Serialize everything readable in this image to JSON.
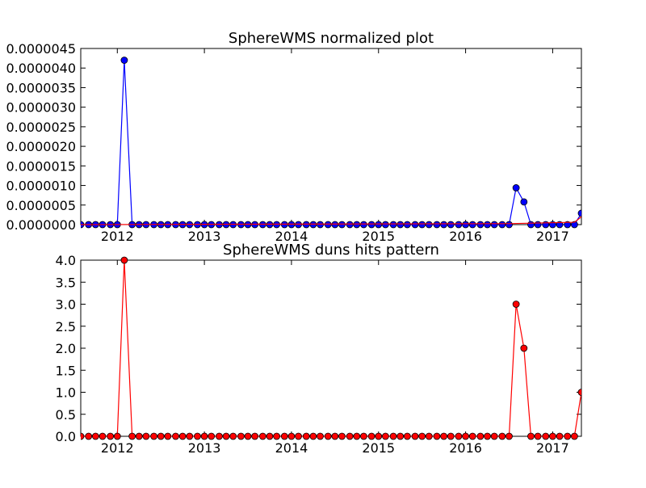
{
  "chart_data": [
    {
      "type": "line",
      "title": "SphereWMS normalized plot",
      "xlabel": "",
      "ylabel": "",
      "x_year_ticks": [
        "2012",
        "2013",
        "2014",
        "2015",
        "2016",
        "2017"
      ],
      "y_ticks": [
        "0.0000000",
        "0.0000005",
        "0.0000010",
        "0.0000015",
        "0.0000020",
        "0.0000025",
        "0.0000030",
        "0.0000035",
        "0.0000040",
        "0.0000045"
      ],
      "ylim": [
        0,
        4.5e-06
      ],
      "xlim": [
        2011.58,
        2017.33
      ],
      "grid": false,
      "series": [
        {
          "color": "#0000ff",
          "marker": "circle",
          "x": [
            2011.58,
            2011.67,
            2011.75,
            2011.83,
            2011.92,
            2012.0,
            2012.08,
            2012.17,
            2012.25,
            2012.33,
            2012.42,
            2012.5,
            2012.58,
            2012.67,
            2012.75,
            2012.83,
            2012.92,
            2013.0,
            2013.08,
            2013.17,
            2013.25,
            2013.33,
            2013.42,
            2013.5,
            2013.58,
            2013.67,
            2013.75,
            2013.83,
            2013.92,
            2014.0,
            2014.08,
            2014.17,
            2014.25,
            2014.33,
            2014.42,
            2014.5,
            2014.58,
            2014.67,
            2014.75,
            2014.83,
            2014.92,
            2015.0,
            2015.08,
            2015.17,
            2015.25,
            2015.33,
            2015.42,
            2015.5,
            2015.58,
            2015.67,
            2015.75,
            2015.83,
            2015.92,
            2016.0,
            2016.08,
            2016.17,
            2016.25,
            2016.33,
            2016.42,
            2016.5,
            2016.58,
            2016.67,
            2016.75,
            2016.83,
            2016.92,
            2017.0,
            2017.08,
            2017.17,
            2017.25,
            2017.33
          ],
          "y": [
            0,
            0,
            0,
            0,
            0,
            0,
            4.2e-06,
            0,
            0,
            0,
            0,
            0,
            0,
            0,
            0,
            0,
            0,
            0,
            0,
            0,
            0,
            0,
            0,
            0,
            0,
            0,
            0,
            0,
            0,
            0,
            0,
            0,
            0,
            0,
            0,
            0,
            0,
            0,
            0,
            0,
            0,
            0,
            0,
            0,
            0,
            0,
            0,
            0,
            0,
            0,
            0,
            0,
            0,
            0,
            0,
            0,
            0,
            0,
            0,
            0,
            9.4e-07,
            5.8e-07,
            0,
            0,
            0,
            0,
            0,
            0,
            0,
            2.9e-07
          ]
        },
        {
          "color": "#ff0000",
          "marker": "none",
          "x": [
            2011.58,
            2016.5,
            2017.25,
            2017.33
          ],
          "y": [
            5e-10,
            2.5e-08,
            6e-08,
            2e-07
          ]
        }
      ]
    },
    {
      "type": "line",
      "title": "SphereWMS duns hits pattern",
      "xlabel": "",
      "ylabel": "",
      "x_year_ticks": [
        "2012",
        "2013",
        "2014",
        "2015",
        "2016",
        "2017"
      ],
      "y_ticks": [
        "0.0",
        "0.5",
        "1.0",
        "1.5",
        "2.0",
        "2.5",
        "3.0",
        "3.5",
        "4.0"
      ],
      "ylim": [
        0,
        4
      ],
      "xlim": [
        2011.58,
        2017.33
      ],
      "grid": false,
      "series": [
        {
          "color": "#ff0000",
          "marker": "circle",
          "x": [
            2011.58,
            2011.67,
            2011.75,
            2011.83,
            2011.92,
            2012.0,
            2012.08,
            2012.17,
            2012.25,
            2012.33,
            2012.42,
            2012.5,
            2012.58,
            2012.67,
            2012.75,
            2012.83,
            2012.92,
            2013.0,
            2013.08,
            2013.17,
            2013.25,
            2013.33,
            2013.42,
            2013.5,
            2013.58,
            2013.67,
            2013.75,
            2013.83,
            2013.92,
            2014.0,
            2014.08,
            2014.17,
            2014.25,
            2014.33,
            2014.42,
            2014.5,
            2014.58,
            2014.67,
            2014.75,
            2014.83,
            2014.92,
            2015.0,
            2015.08,
            2015.17,
            2015.25,
            2015.33,
            2015.42,
            2015.5,
            2015.58,
            2015.67,
            2015.75,
            2015.83,
            2015.92,
            2016.0,
            2016.08,
            2016.17,
            2016.25,
            2016.33,
            2016.42,
            2016.5,
            2016.58,
            2016.67,
            2016.75,
            2016.83,
            2016.92,
            2017.0,
            2017.08,
            2017.17,
            2017.25,
            2017.33
          ],
          "y": [
            0,
            0,
            0,
            0,
            0,
            0,
            4,
            0,
            0,
            0,
            0,
            0,
            0,
            0,
            0,
            0,
            0,
            0,
            0,
            0,
            0,
            0,
            0,
            0,
            0,
            0,
            0,
            0,
            0,
            0,
            0,
            0,
            0,
            0,
            0,
            0,
            0,
            0,
            0,
            0,
            0,
            0,
            0,
            0,
            0,
            0,
            0,
            0,
            0,
            0,
            0,
            0,
            0,
            0,
            0,
            0,
            0,
            0,
            0,
            0,
            3,
            2,
            0,
            0,
            0,
            0,
            0,
            0,
            0,
            1
          ]
        }
      ]
    }
  ]
}
